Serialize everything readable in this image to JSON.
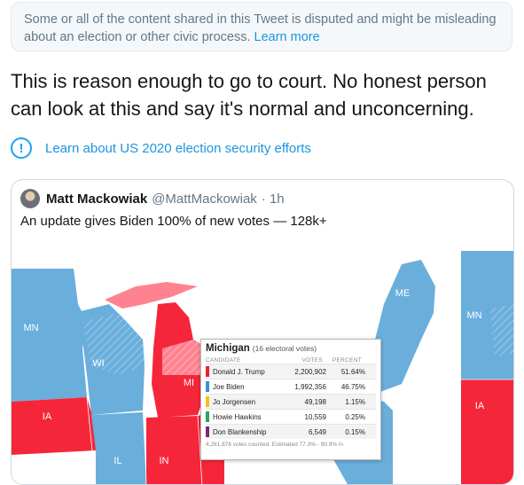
{
  "notice": {
    "text": "Some or all of the content shared in this Tweet is disputed and might be misleading about an election or other civic process.",
    "link": "Learn more"
  },
  "tweet": {
    "text": "This is reason enough to go to court. No honest person can look at this and say it's normal and unconcerning."
  },
  "election_link": {
    "icon": "!",
    "label": "Learn about US 2020 election security efforts"
  },
  "quoted_tweet": {
    "name": "Matt Mackowiak",
    "handle": "@MattMackowiak",
    "time": "· 1h",
    "text": "An update gives Biden 100% of new votes — 128k+"
  },
  "map": {
    "labels": [
      "MN",
      "WI",
      "MI",
      "IA",
      "IL",
      "IN",
      "ME",
      "MN",
      "IA"
    ],
    "colors": {
      "dem": "#6aaedc",
      "rep": "#f6263a",
      "rep_hatch": "#ff8291",
      "dem_hatch": "#9acbea"
    }
  },
  "popup": {
    "state": "Michigan",
    "electoral": "(16 electoral votes)",
    "headers": {
      "candidate": "CANDIDATE",
      "votes": "VOTES",
      "percent": "PERCENT"
    },
    "rows": [
      {
        "name": "Donald J. Trump",
        "votes": "2,200,902",
        "pct": "51.64%",
        "color": "#e8242e"
      },
      {
        "name": "Joe Biden",
        "votes": "1,992,356",
        "pct": "46.75%",
        "color": "#3c8fcf"
      },
      {
        "name": "Jo Jorgensen",
        "votes": "49,198",
        "pct": "1.15%",
        "color": "#f3c21a"
      },
      {
        "name": "Howie Hawkins",
        "votes": "10,559",
        "pct": "0.25%",
        "color": "#2aa45f"
      },
      {
        "name": "Don Blankenship",
        "votes": "6,549",
        "pct": "0.15%",
        "color": "#7a2a7a"
      }
    ],
    "footer": "4,261,878 votes counted. Estimated 77.3% - 90.9% in"
  }
}
